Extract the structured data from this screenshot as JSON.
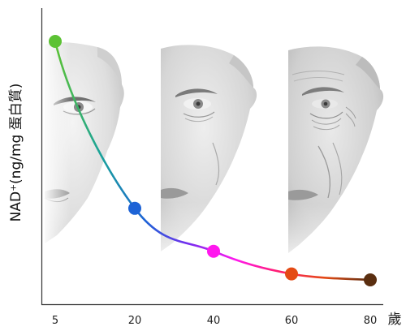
{
  "chart_data": {
    "type": "line",
    "ylabel": "NAD⁺(ng/mg 蛋白質)",
    "x_unit_label": "歲",
    "x": [
      5,
      20,
      40,
      60,
      80
    ],
    "x_tick_labels": [
      "5",
      "20",
      "40",
      "60",
      "80"
    ],
    "series": [
      {
        "values": [
          100,
          30,
          12,
          2.5,
          0
        ],
        "point_colors": [
          "#5cc234",
          "#1d63d6",
          "#ff18ee",
          "#e44a14",
          "#5a2e10"
        ]
      }
    ],
    "curve_gradient": [
      "#5cc234",
      "#1aa39a",
      "#1d63d6",
      "#7a2cf0",
      "#ff18ee",
      "#ff1f6a",
      "#e44a14",
      "#5a2e10"
    ],
    "grid": false,
    "legend": "none",
    "background_images": [
      "face-young",
      "face-middle-aged",
      "face-elderly"
    ]
  }
}
